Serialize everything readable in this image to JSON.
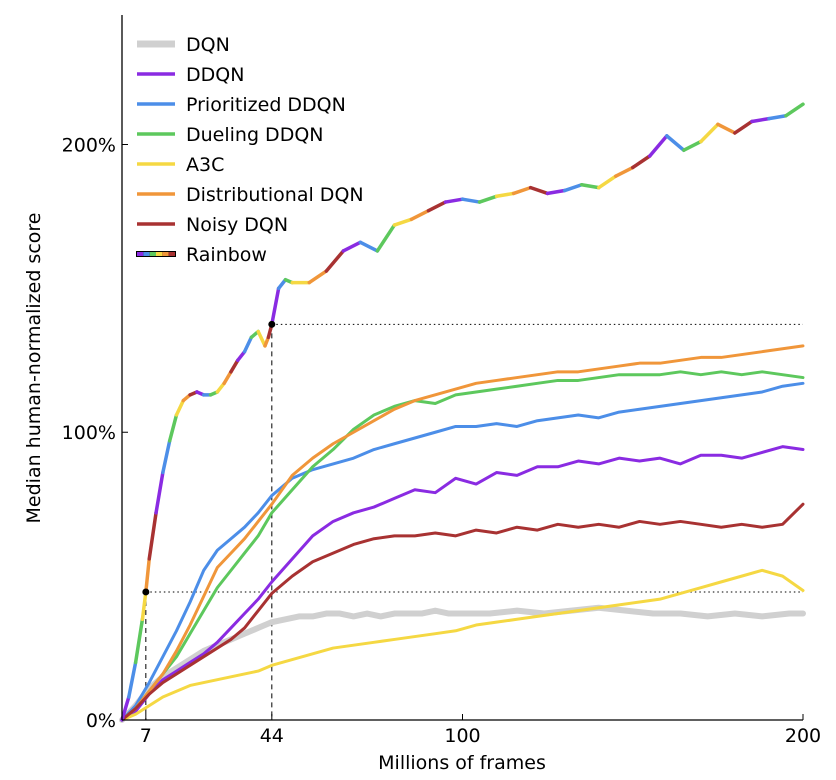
{
  "chart_data": {
    "type": "line",
    "xlabel": "Millions of frames",
    "ylabel": "Median human-normalized score",
    "xlim": [
      0,
      200
    ],
    "ylim": [
      0,
      245
    ],
    "xticks": [
      {
        "value": 7,
        "label": "7"
      },
      {
        "value": 44,
        "label": "44"
      },
      {
        "value": 100,
        "label": "100"
      },
      {
        "value": 200,
        "label": "200"
      }
    ],
    "yticks": [
      {
        "value": 0,
        "label": "0%"
      },
      {
        "value": 100,
        "label": "100%"
      },
      {
        "value": 200,
        "label": "200%"
      }
    ],
    "legend_position": "top-left",
    "reference_lines": [
      {
        "x": 7,
        "y": 44.5
      },
      {
        "x": 44,
        "y": 137.5
      }
    ],
    "series": [
      {
        "name": "DQN",
        "color": "#d0d0d0",
        "width": 6,
        "x": [
          0,
          4,
          8,
          12,
          16,
          20,
          24,
          28,
          32,
          36,
          40,
          44,
          48,
          52,
          56,
          60,
          64,
          68,
          72,
          76,
          80,
          84,
          88,
          92,
          96,
          100,
          108,
          116,
          124,
          132,
          140,
          148,
          156,
          164,
          172,
          180,
          188,
          196,
          200
        ],
        "y": [
          0,
          5,
          11,
          15,
          18,
          21,
          24,
          26,
          28,
          30,
          32,
          34,
          35,
          36,
          36,
          37,
          37,
          36,
          37,
          36,
          37,
          37,
          37,
          38,
          37,
          37,
          37,
          38,
          37,
          38,
          39,
          38,
          37,
          37,
          36,
          37,
          36,
          37,
          37
        ]
      },
      {
        "name": "DDQN",
        "color": "#8a2be2",
        "width": 3,
        "x": [
          0,
          4,
          8,
          12,
          16,
          20,
          24,
          28,
          32,
          36,
          40,
          44,
          50,
          56,
          62,
          68,
          74,
          80,
          86,
          92,
          98,
          104,
          110,
          116,
          122,
          128,
          134,
          140,
          146,
          152,
          158,
          164,
          170,
          176,
          182,
          188,
          194,
          200
        ],
        "y": [
          0,
          3,
          9,
          14,
          17,
          20,
          23,
          27,
          32,
          37,
          42,
          48,
          56,
          64,
          69,
          72,
          74,
          77,
          80,
          79,
          84,
          82,
          86,
          85,
          88,
          88,
          90,
          89,
          91,
          90,
          91,
          89,
          92,
          92,
          91,
          93,
          95,
          94
        ]
      },
      {
        "name": "Prioritized DDQN",
        "color": "#4c8ee8",
        "width": 3,
        "x": [
          0,
          4,
          8,
          12,
          16,
          20,
          24,
          28,
          32,
          36,
          40,
          44,
          50,
          56,
          62,
          68,
          74,
          80,
          86,
          92,
          98,
          104,
          110,
          116,
          122,
          128,
          134,
          140,
          146,
          152,
          158,
          164,
          170,
          176,
          182,
          188,
          194,
          200
        ],
        "y": [
          0,
          5,
          13,
          22,
          31,
          41,
          52,
          59,
          63,
          67,
          72,
          78,
          84,
          87,
          89,
          91,
          94,
          96,
          98,
          100,
          102,
          102,
          103,
          102,
          104,
          105,
          106,
          105,
          107,
          108,
          109,
          110,
          111,
          112,
          113,
          114,
          116,
          117
        ]
      },
      {
        "name": "Dueling DDQN",
        "color": "#5dc85d",
        "width": 3,
        "x": [
          0,
          4,
          8,
          12,
          16,
          20,
          24,
          28,
          32,
          36,
          40,
          44,
          50,
          56,
          62,
          68,
          74,
          80,
          86,
          92,
          98,
          104,
          110,
          116,
          122,
          128,
          134,
          140,
          146,
          152,
          158,
          164,
          170,
          176,
          182,
          188,
          194,
          200
        ],
        "y": [
          0,
          4,
          10,
          16,
          22,
          30,
          38,
          46,
          52,
          58,
          64,
          72,
          80,
          88,
          94,
          101,
          106,
          109,
          111,
          110,
          113,
          114,
          115,
          116,
          117,
          118,
          118,
          119,
          120,
          120,
          120,
          121,
          120,
          121,
          120,
          121,
          120,
          119
        ]
      },
      {
        "name": "A3C",
        "color": "#f5d843",
        "width": 3,
        "x": [
          0,
          4,
          8,
          12,
          16,
          20,
          24,
          28,
          32,
          36,
          40,
          44,
          50,
          56,
          62,
          68,
          74,
          80,
          86,
          92,
          98,
          104,
          110,
          116,
          122,
          128,
          134,
          140,
          146,
          152,
          158,
          164,
          170,
          176,
          182,
          188,
          194,
          200
        ],
        "y": [
          0,
          2,
          5,
          8,
          10,
          12,
          13,
          14,
          15,
          16,
          17,
          19,
          21,
          23,
          25,
          26,
          27,
          28,
          29,
          30,
          31,
          33,
          34,
          35,
          36,
          37,
          38,
          39,
          40,
          41,
          42,
          44,
          46,
          48,
          50,
          52,
          50,
          45
        ]
      },
      {
        "name": "Distributional DQN",
        "color": "#f0963a",
        "width": 3,
        "x": [
          0,
          4,
          8,
          12,
          16,
          20,
          24,
          28,
          32,
          36,
          40,
          44,
          50,
          56,
          62,
          68,
          74,
          80,
          86,
          92,
          98,
          104,
          110,
          116,
          122,
          128,
          134,
          140,
          146,
          152,
          158,
          164,
          170,
          176,
          182,
          188,
          194,
          200
        ],
        "y": [
          0,
          4,
          10,
          16,
          24,
          33,
          43,
          53,
          58,
          63,
          69,
          75,
          85,
          91,
          96,
          100,
          104,
          108,
          111,
          113,
          115,
          117,
          118,
          119,
          120,
          121,
          121,
          122,
          123,
          124,
          124,
          125,
          126,
          126,
          127,
          128,
          129,
          130
        ]
      },
      {
        "name": "Noisy DQN",
        "color": "#a83232",
        "width": 3,
        "x": [
          0,
          4,
          8,
          12,
          16,
          20,
          24,
          28,
          32,
          36,
          40,
          44,
          50,
          56,
          62,
          68,
          74,
          80,
          86,
          92,
          98,
          104,
          110,
          116,
          122,
          128,
          134,
          140,
          146,
          152,
          158,
          164,
          170,
          176,
          182,
          188,
          194,
          200
        ],
        "y": [
          0,
          4,
          9,
          13,
          16,
          19,
          22,
          25,
          28,
          32,
          38,
          44,
          50,
          55,
          58,
          61,
          63,
          64,
          64,
          65,
          64,
          66,
          65,
          67,
          66,
          68,
          67,
          68,
          67,
          69,
          68,
          69,
          68,
          67,
          68,
          67,
          68,
          75
        ]
      },
      {
        "name": "Rainbow",
        "color": "rainbow",
        "width": 3.5,
        "x": [
          0,
          2,
          4,
          6,
          7,
          8,
          10,
          12,
          14,
          16,
          18,
          20,
          22,
          24,
          26,
          28,
          30,
          32,
          34,
          36,
          38,
          40,
          42,
          43,
          44,
          46,
          48,
          50,
          55,
          60,
          65,
          70,
          75,
          80,
          85,
          90,
          95,
          100,
          105,
          110,
          115,
          120,
          125,
          130,
          135,
          140,
          145,
          150,
          155,
          160,
          165,
          170,
          175,
          180,
          185,
          190,
          195,
          200
        ],
        "y": [
          0,
          8,
          20,
          35,
          44.5,
          56,
          72,
          86,
          97,
          106,
          111,
          113,
          114,
          113,
          113,
          114,
          117,
          121,
          125,
          128,
          133,
          135,
          130,
          133,
          137.5,
          150,
          153,
          152,
          152,
          156,
          163,
          166,
          163,
          172,
          174,
          177,
          180,
          181,
          180,
          182,
          183,
          185,
          183,
          184,
          186,
          185,
          189,
          192,
          196,
          203,
          198,
          201,
          207,
          204,
          208,
          209,
          210,
          214
        ]
      }
    ]
  }
}
